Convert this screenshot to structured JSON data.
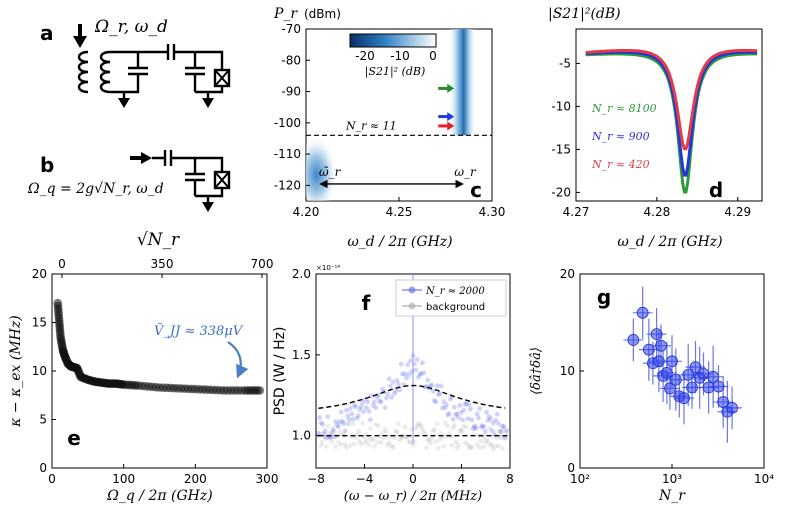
{
  "figure": {
    "panel_letters": [
      "a",
      "b",
      "c",
      "d",
      "e",
      "f",
      "g"
    ],
    "circuit_a": {
      "label": "Ω_r, ω_d"
    },
    "circuit_b": {
      "label": "Ω_q = 2g√N_r, ω_d"
    }
  },
  "chart_data": [
    {
      "id": "c",
      "type": "heatmap",
      "xlabel": "ω_d / 2π (GHz)",
      "ylabel": "P_r",
      "ylabel_unit": "(dBm)",
      "xlim": [
        4.2,
        4.3
      ],
      "ylim": [
        -125,
        -70
      ],
      "xticks": [
        "4.20",
        "4.25",
        "4.30"
      ],
      "yticks": [
        "-70",
        "-80",
        "-90",
        "-100",
        "-110",
        "-120"
      ],
      "colorbar": {
        "label": "|S21|² (dB)",
        "ticks": [
          "-20",
          "-10",
          "0"
        ],
        "range": [
          -20,
          0
        ]
      },
      "resonance_high_power_GHz": 4.284,
      "resonance_low_power_GHz": 4.208,
      "threshold": {
        "power_dBm": -104,
        "label": "N_r ≈ 11"
      },
      "arrows": [
        {
          "color": "#2a8a2a",
          "power_dBm": -89
        },
        {
          "color": "#1a3fe0",
          "power_dBm": -98
        },
        {
          "color": "#e0202a",
          "power_dBm": -101
        }
      ],
      "span_labels": {
        "left": "ω̃_r",
        "right": "ω_r",
        "power_dBm": -117
      }
    },
    {
      "id": "d",
      "type": "line",
      "title": "|S21|²(dB)",
      "xlabel": "ω_d / 2π (GHz)",
      "xlim": [
        4.27,
        4.293
      ],
      "ylim": [
        -21,
        -1
      ],
      "xticks": [
        "4.27",
        "4.28",
        "4.29"
      ],
      "yticks": [
        "-5",
        "-10",
        "-15",
        "-20"
      ],
      "center_GHz": 4.2835,
      "series": [
        {
          "name": "N_r ≈ 8100",
          "color": "#2e9c3a",
          "depth_dB": -19.5,
          "width_MHz": 2.2
        },
        {
          "name": "N_r ≈ 900",
          "color": "#2535d6",
          "depth_dB": -17.8,
          "width_MHz": 2.3
        },
        {
          "name": "N_r ≈ 420",
          "color": "#e23c4a",
          "depth_dB": -15.0,
          "width_MHz": 2.5
        }
      ]
    },
    {
      "id": "e",
      "type": "scatter",
      "xlabel": "Ω_q / 2π (GHz)",
      "ylabel": "κ − κ_ex (MHz)",
      "top_axis_label": "√N_r",
      "top_ticks": [
        "0",
        "350",
        "700"
      ],
      "xlim": [
        0,
        300
      ],
      "ylim": [
        0,
        20
      ],
      "xticks": [
        "0",
        "100",
        "200",
        "300"
      ],
      "yticks": [
        "0",
        "5",
        "10",
        "15",
        "20"
      ],
      "annotation": "Ṽ_JJ ≈ 338μV",
      "x": [
        8,
        10,
        12,
        15,
        18,
        22,
        26,
        30,
        35,
        40,
        50,
        60,
        70,
        80,
        90,
        100,
        120,
        150,
        180,
        210,
        240,
        270,
        290
      ],
      "y": [
        17.0,
        15.2,
        13.5,
        12.2,
        11.5,
        10.8,
        10.5,
        10.4,
        10.3,
        9.4,
        9.1,
        8.9,
        8.8,
        8.7,
        8.7,
        8.6,
        8.5,
        8.3,
        8.2,
        8.1,
        8.0,
        8.0,
        8.0
      ]
    },
    {
      "id": "f",
      "type": "line",
      "xlabel": "(ω − ω_r) / 2π (MHz)",
      "ylabel": "PSD (W / Hz)",
      "scale_label": "×10⁻¹⁴",
      "xlim": [
        -8,
        8
      ],
      "ylim": [
        0.8,
        2.0
      ],
      "xticks": [
        "−8",
        "−4",
        "0",
        "4",
        "8"
      ],
      "yticks": [
        "1.0",
        "1.5",
        "2.0"
      ],
      "series": [
        {
          "name": "N_r ≈ 2000",
          "color": "#5566ee",
          "baseline": 1.0,
          "peak": 1.31,
          "width_MHz": 4.6
        },
        {
          "name": "background",
          "color": "#aaaaaa",
          "baseline": 1.0
        }
      ]
    },
    {
      "id": "g",
      "type": "scatter",
      "xlabel": "N_r",
      "ylabel": "⟨δâ†δâ⟩",
      "xscale": "log",
      "xlim": [
        100,
        10000
      ],
      "ylim": [
        0,
        20
      ],
      "xticks": [
        "10²",
        "10³",
        "10⁴"
      ],
      "yticks": [
        "0",
        "10",
        "20"
      ],
      "x": [
        380,
        480,
        560,
        620,
        680,
        720,
        760,
        800,
        880,
        950,
        1000,
        1100,
        1200,
        1350,
        1500,
        1650,
        1800,
        2000,
        2200,
        2500,
        2800,
        3200,
        3600,
        4000,
        4500
      ],
      "y": [
        13.2,
        16.0,
        12.2,
        10.8,
        13.8,
        11.0,
        12.6,
        9.5,
        9.8,
        8.2,
        11.0,
        9.1,
        7.4,
        7.2,
        9.6,
        8.3,
        10.4,
        9.3,
        9.7,
        8.3,
        9.4,
        8.4,
        6.8,
        5.8,
        6.2
      ]
    }
  ]
}
